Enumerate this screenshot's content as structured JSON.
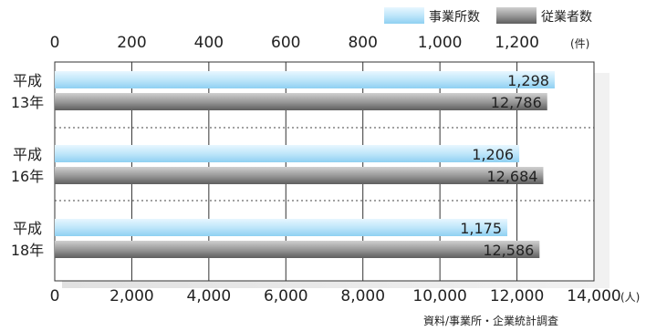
{
  "chart_data": {
    "type": "bar",
    "orientation": "horizontal",
    "categories": [
      {
        "line1": "平成",
        "line2": "13年"
      },
      {
        "line1": "平成",
        "line2": "16年"
      },
      {
        "line1": "平成",
        "line2": "18年"
      }
    ],
    "series": [
      {
        "name": "事業所数",
        "axis": "top",
        "values": [
          1298,
          1206,
          1175
        ],
        "labels": [
          "1,298",
          "1,206",
          "1,175"
        ],
        "color": "#bfe6fa"
      },
      {
        "name": "従業者数",
        "axis": "bottom",
        "values": [
          12786,
          12684,
          12586
        ],
        "labels": [
          "12,786",
          "12,684",
          "12,586"
        ],
        "color": "#8c8c8c"
      }
    ],
    "top_axis": {
      "range": [
        0,
        1400
      ],
      "ticks": [
        0,
        200,
        400,
        600,
        800,
        1000,
        1200
      ],
      "tick_labels": [
        "0",
        "200",
        "400",
        "600",
        "800",
        "1,000",
        "1,200"
      ],
      "unit": "(件)"
    },
    "bottom_axis": {
      "range": [
        0,
        14000
      ],
      "ticks": [
        0,
        2000,
        4000,
        6000,
        8000,
        10000,
        12000,
        14000
      ],
      "tick_labels": [
        "0",
        "2,000",
        "4,000",
        "6,000",
        "8,000",
        "10,000",
        "12,000",
        "14,000"
      ],
      "unit": "(人)"
    },
    "grid": true,
    "legend_position": "top-right",
    "source": "資料/事業所・企業統計調査"
  }
}
